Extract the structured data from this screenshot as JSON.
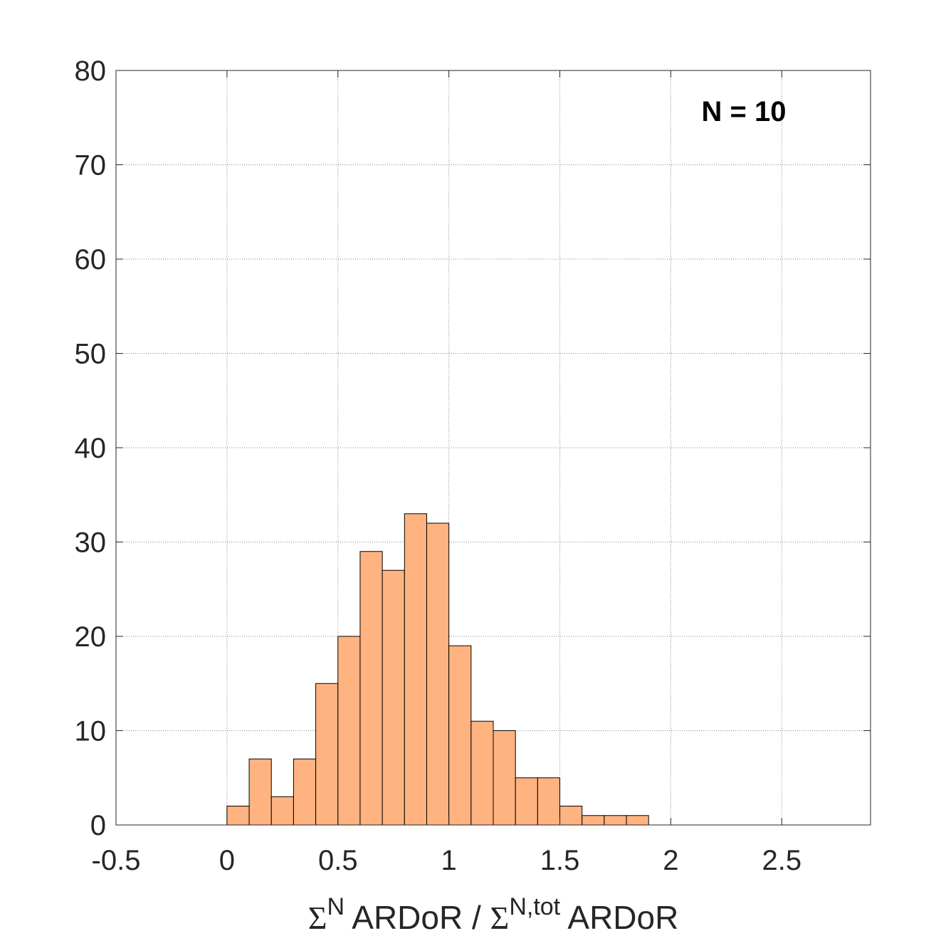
{
  "chart_data": {
    "type": "bar",
    "title": "",
    "annotation": "N = 10",
    "xlabel_parts": {
      "sigma1": "Σ",
      "sup1": "N",
      "text1": " ARDoR / ",
      "sigma2": "Σ",
      "sup2": "N,tot",
      "text2": " ARDoR"
    },
    "ylabel": "",
    "xlim": [
      -0.5,
      2.9
    ],
    "ylim": [
      0,
      80
    ],
    "xticks": [
      -0.5,
      0,
      0.5,
      1,
      1.5,
      2,
      2.5
    ],
    "xtick_labels": [
      "-0.5",
      "0",
      "0.5",
      "1",
      "1.5",
      "2",
      "2.5"
    ],
    "yticks": [
      0,
      10,
      20,
      30,
      40,
      50,
      60,
      70,
      80
    ],
    "ytick_labels": [
      "0",
      "10",
      "20",
      "30",
      "40",
      "50",
      "60",
      "70",
      "80"
    ],
    "grid": true,
    "bin_width": 0.1,
    "bin_starts": [
      0,
      0.1,
      0.2,
      0.3,
      0.4,
      0.5,
      0.6,
      0.7,
      0.8,
      0.9,
      1.0,
      1.1,
      1.2,
      1.3,
      1.4,
      1.5,
      1.6,
      1.7,
      1.8
    ],
    "values": [
      2,
      7,
      3,
      7,
      15,
      20,
      29,
      27,
      33,
      32,
      19,
      11,
      10,
      5,
      5,
      2,
      1,
      1,
      1
    ],
    "bar_color": "#ffb380",
    "bar_edge_color": "#000000"
  }
}
